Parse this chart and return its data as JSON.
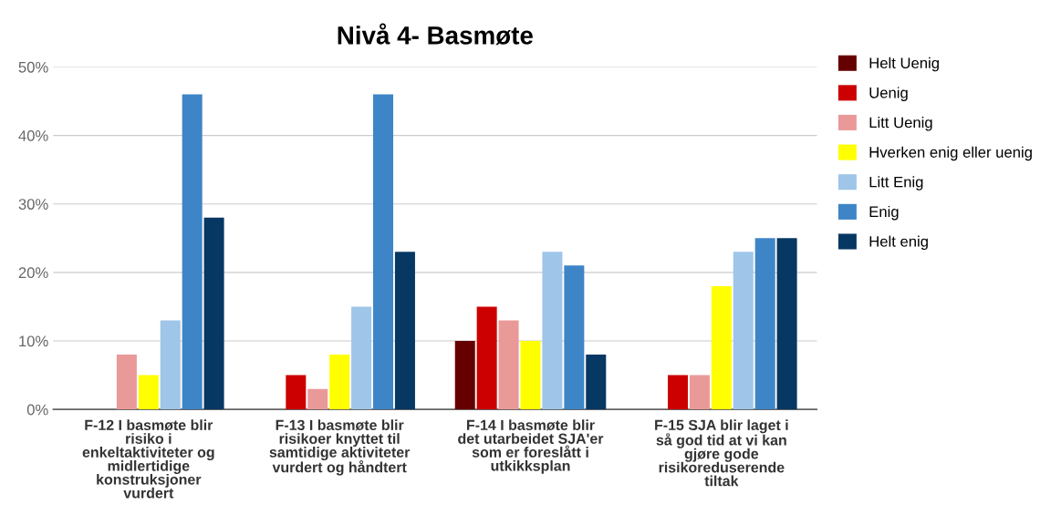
{
  "chart_data": {
    "type": "bar",
    "title": "Nivå 4- Basmøte",
    "categories": [
      "F-12 I basmøte blir\nrisiko i\nenkeltaktiviteter og\nmidlertidige\nkonstruksjoner\nvurdert",
      "F-13 I basmøte blir\nrisikoer knyttet til\nsamtidige aktiviteter\nvurdert og håndtert",
      "F-14 I basmøte blir\ndet utarbeidet SJA'er\nsom er foreslått i\nutkikksplan",
      "F-15 SJA blir laget i\nså god tid at vi kan\ngjøre gode\nrisikoreduserende\ntiltak"
    ],
    "series": [
      {
        "name": "Helt Uenig",
        "color": "#660000",
        "values": [
          0,
          0,
          10,
          0
        ]
      },
      {
        "name": "Uenig",
        "color": "#cc0000",
        "values": [
          0,
          5,
          15,
          5
        ]
      },
      {
        "name": "Litt Uenig",
        "color": "#ea9999",
        "values": [
          8,
          3,
          13,
          5
        ]
      },
      {
        "name": "Hverken enig eller uenig",
        "color": "#ffff00",
        "values": [
          5,
          8,
          10,
          18
        ]
      },
      {
        "name": "Litt Enig",
        "color": "#9fc5e8",
        "values": [
          13,
          15,
          23,
          23
        ]
      },
      {
        "name": "Enig",
        "color": "#3d85c6",
        "values": [
          46,
          46,
          21,
          25
        ]
      },
      {
        "name": "Helt enig",
        "color": "#073763",
        "values": [
          28,
          23,
          8,
          25
        ]
      }
    ],
    "ylim": [
      0,
      50
    ],
    "yticks": [
      {
        "value": 0,
        "label": "0%"
      },
      {
        "value": 10,
        "label": "10%"
      },
      {
        "value": 20,
        "label": "20%"
      },
      {
        "value": 30,
        "label": "30%"
      },
      {
        "value": 40,
        "label": "40%"
      },
      {
        "value": 50,
        "label": "50%"
      }
    ],
    "grid": "y",
    "legend": "right"
  }
}
